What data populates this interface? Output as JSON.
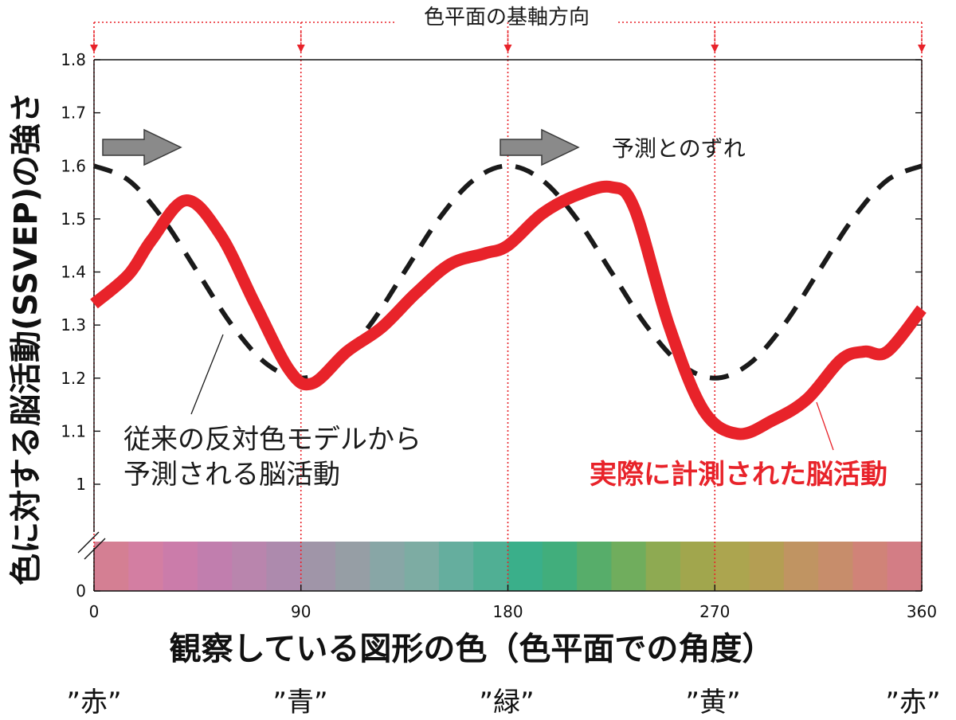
{
  "chart_data": {
    "type": "line",
    "title": "",
    "top_annotation": "色平面の基軸方向",
    "ylabel": "色に対する脳活動(SSVEP)の強さ",
    "xlabel": "観察している図形の色（色平面での角度）",
    "xlim": [
      0,
      360
    ],
    "ylim": [
      0,
      1.8
    ],
    "y_axis_break": true,
    "grid": false,
    "x_ticks": [
      "0",
      "90",
      "180",
      "270",
      "360"
    ],
    "y_ticks": [
      "0",
      "1",
      "1.1",
      "1.2",
      "1.3",
      "1.4",
      "1.5",
      "1.6",
      "1.7",
      "1.8"
    ],
    "color_names": [
      {
        "x": 0,
        "label": "”赤”"
      },
      {
        "x": 90,
        "label": "”青”"
      },
      {
        "x": 180,
        "label": "”緑”"
      },
      {
        "x": 270,
        "label": "”黄”"
      },
      {
        "x": 360,
        "label": "”赤”"
      }
    ],
    "reference_lines_x": [
      0,
      90,
      180,
      270,
      360
    ],
    "annotations": {
      "shift_label": "予測とのずれ",
      "model_label": [
        "従来の反対色モデルから",
        "予測される脳活動"
      ],
      "measured_label": "実際に計測された脳活動"
    },
    "series": [
      {
        "id": "model",
        "style": "dashed",
        "color": "#1a1a1a",
        "x": [
          0,
          15,
          30,
          45,
          60,
          75,
          90,
          105,
          120,
          135,
          150,
          165,
          180,
          195,
          210,
          225,
          240,
          255,
          270,
          285,
          300,
          315,
          330,
          345,
          360
        ],
        "y": [
          1.6,
          1.573,
          1.5,
          1.4,
          1.3,
          1.227,
          1.2,
          1.227,
          1.3,
          1.4,
          1.5,
          1.573,
          1.6,
          1.573,
          1.5,
          1.4,
          1.3,
          1.227,
          1.2,
          1.227,
          1.3,
          1.4,
          1.5,
          1.573,
          1.6
        ]
      },
      {
        "id": "measured",
        "style": "solid",
        "color": "#e8232a",
        "x": [
          0,
          15,
          25,
          40,
          55,
          70,
          85,
          95,
          110,
          125,
          140,
          155,
          170,
          180,
          195,
          210,
          225,
          235,
          250,
          265,
          280,
          295,
          310,
          325,
          335,
          345,
          360
        ],
        "y": [
          1.34,
          1.395,
          1.46,
          1.535,
          1.47,
          1.34,
          1.215,
          1.19,
          1.25,
          1.295,
          1.36,
          1.415,
          1.435,
          1.45,
          1.51,
          1.545,
          1.56,
          1.52,
          1.3,
          1.14,
          1.095,
          1.12,
          1.16,
          1.235,
          1.25,
          1.25,
          1.33
        ]
      }
    ],
    "color_bar": {
      "x": [
        0,
        15,
        30,
        45,
        60,
        75,
        90,
        105,
        120,
        135,
        150,
        165,
        180,
        195,
        210,
        225,
        240,
        255,
        270,
        285,
        300,
        315,
        330,
        345
      ],
      "colors": [
        "#d47f93",
        "#d37ea2",
        "#cb7caa",
        "#c17eae",
        "#b985ad",
        "#ad8aad",
        "#a095a8",
        "#969ea5",
        "#88a6a6",
        "#7daca3",
        "#65ae9e",
        "#50af94",
        "#3aaf8a",
        "#41ae7c",
        "#57ad6a",
        "#70ad5d",
        "#8eaa52",
        "#a1a64d",
        "#aca54f",
        "#b49e53",
        "#c09462",
        "#c78d6b",
        "#d08378",
        "#d37d85"
      ]
    }
  }
}
